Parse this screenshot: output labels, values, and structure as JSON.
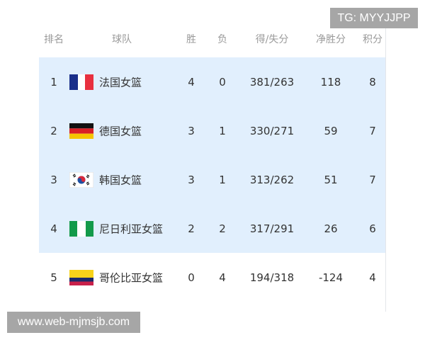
{
  "headers": {
    "rank": "排名",
    "team": "球队",
    "wins": "胜",
    "losses": "负",
    "points_for_against": "得/失分",
    "point_diff": "净胜分",
    "standing_points": "积分"
  },
  "rows": [
    {
      "rank": "1",
      "flag": "france-flag",
      "team": "法国女篮",
      "wins": "4",
      "losses": "0",
      "pts": "381/263",
      "diff": "118",
      "score": "8",
      "highlight": true
    },
    {
      "rank": "2",
      "flag": "germany-flag",
      "team": "德国女篮",
      "wins": "3",
      "losses": "1",
      "pts": "330/271",
      "diff": "59",
      "score": "7",
      "highlight": true
    },
    {
      "rank": "3",
      "flag": "south-korea-flag",
      "team": "韩国女篮",
      "wins": "3",
      "losses": "1",
      "pts": "313/262",
      "diff": "51",
      "score": "7",
      "highlight": true
    },
    {
      "rank": "4",
      "flag": "nigeria-flag",
      "team": "尼日利亚女篮",
      "wins": "2",
      "losses": "2",
      "pts": "317/291",
      "diff": "26",
      "score": "6",
      "highlight": true
    },
    {
      "rank": "5",
      "flag": "colombia-flag",
      "team": "哥伦比亚女篮",
      "wins": "0",
      "losses": "4",
      "pts": "194/318",
      "diff": "-124",
      "score": "4",
      "highlight": false
    }
  ],
  "watermarks": {
    "top": "TG: MYYJJPP",
    "bottom": "www.web-mjmsjb.com"
  },
  "colors": {
    "highlight_row": "#e1effd",
    "watermark_bg": "#a6a6a6"
  }
}
